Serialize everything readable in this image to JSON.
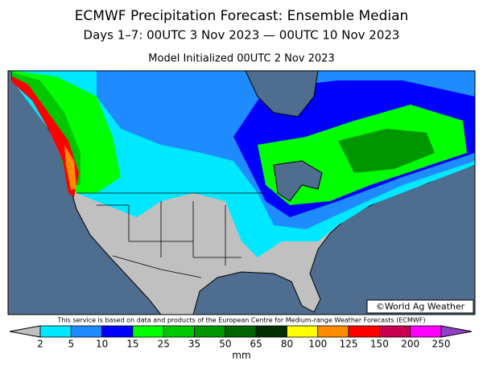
{
  "header": {
    "title": "ECMWF Precipitation Forecast: Ensemble Median",
    "subtitle": "Days 1–7: 00UTC 3 Nov 2023 — 00UTC 10 Nov 2023",
    "initialized": "Model Initialized 00UTC 2 Nov 2023"
  },
  "map": {
    "copyright": "©World Ag Weather"
  },
  "footer": {
    "attribution": "This service is based on data and products of the European Centre for Medium-range Weather Forecasts (ECMWF)"
  },
  "legend": {
    "ticks": [
      2,
      5,
      10,
      15,
      25,
      35,
      50,
      65,
      80,
      100,
      125,
      150,
      200,
      250
    ],
    "colors": [
      "#c0c0c0",
      "#00e8ff",
      "#1e8cff",
      "#0000ff",
      "#00ff00",
      "#00c800",
      "#009600",
      "#006400",
      "#003000",
      "#ffff00",
      "#ff8c00",
      "#ff0000",
      "#c80050",
      "#ff00ff",
      "#9040c8"
    ],
    "unit": "mm"
  }
}
